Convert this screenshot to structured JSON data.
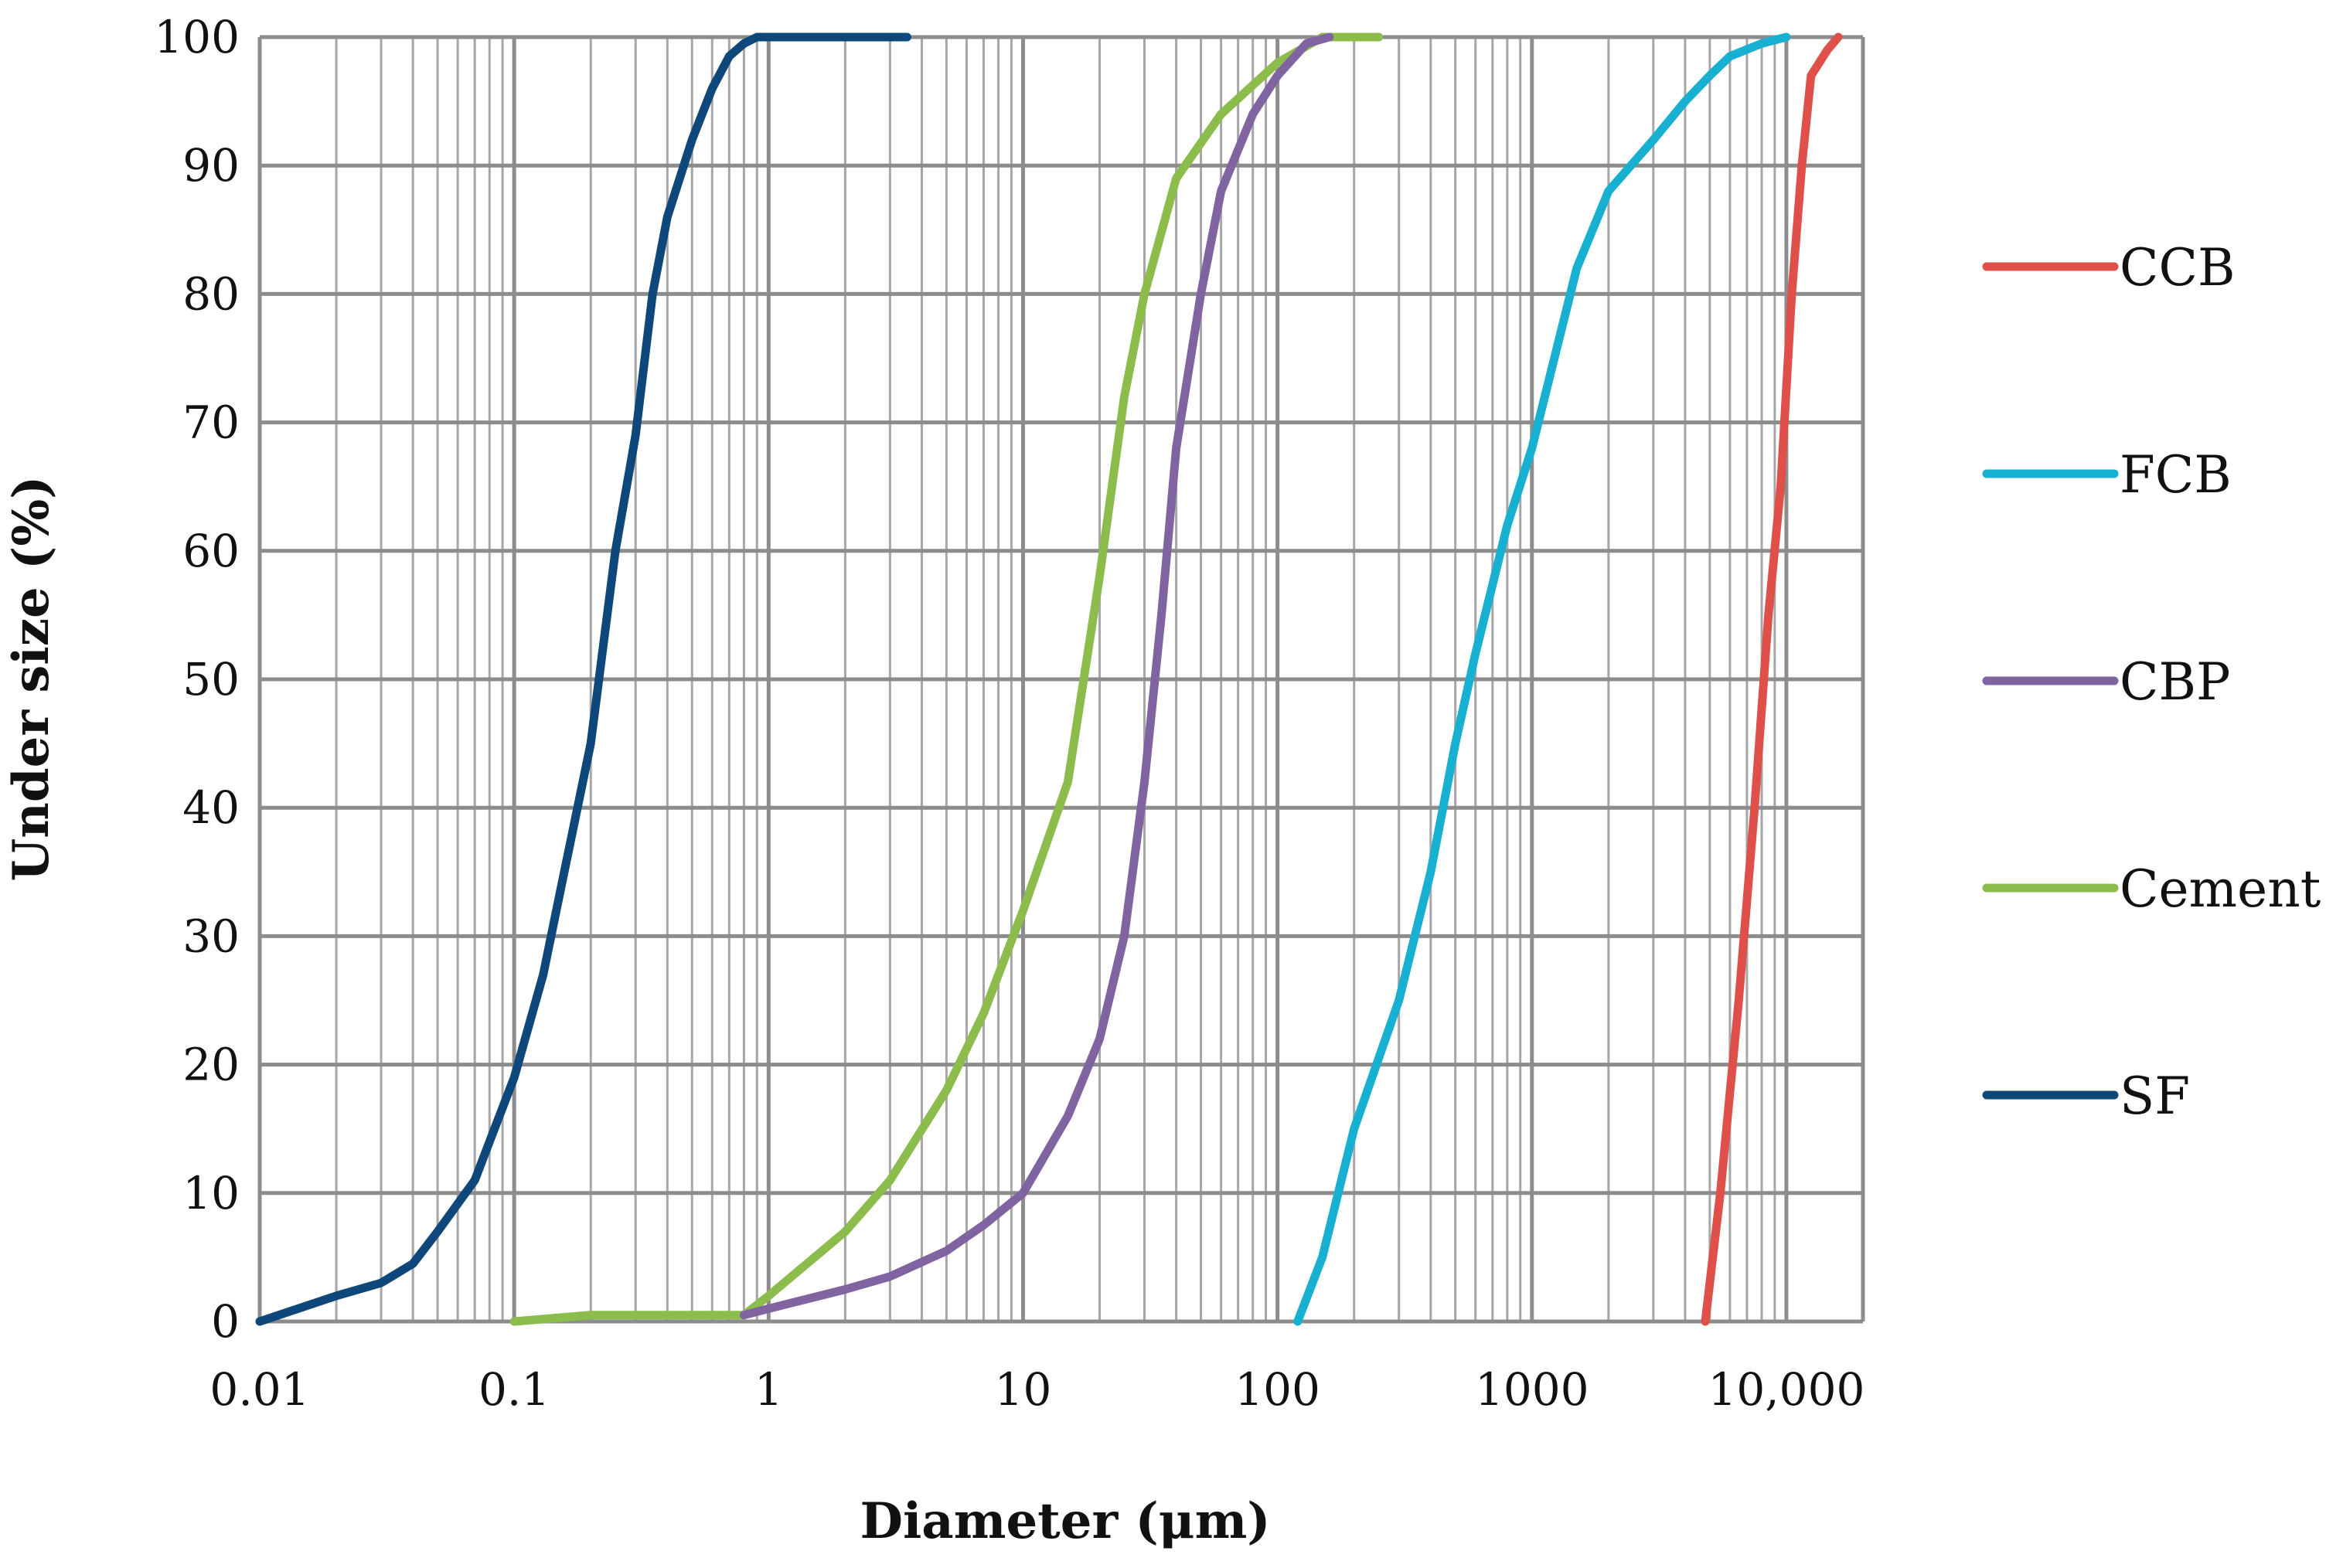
{
  "chart_data": {
    "type": "line",
    "title": "",
    "xlabel": "Diameter (μm)",
    "ylabel": "Under size (%)",
    "xscale": "log",
    "xlim": [
      0.01,
      20000
    ],
    "ylim": [
      0,
      100
    ],
    "x_tick_values": [
      0.01,
      0.1,
      1,
      10,
      100,
      1000,
      10000
    ],
    "x_tick_labels": [
      "0.01",
      "0.1",
      "1",
      "10",
      "100",
      "1000",
      "10,000"
    ],
    "y_tick_values": [
      0,
      10,
      20,
      30,
      40,
      50,
      60,
      70,
      80,
      90,
      100
    ],
    "y_tick_labels": [
      "0",
      "10",
      "20",
      "30",
      "40",
      "50",
      "60",
      "70",
      "80",
      "90",
      "100"
    ],
    "grid": true,
    "legend_position": "right",
    "series": [
      {
        "name": "CCB",
        "color": "#e0504a",
        "x": [
          4800,
          5500,
          6500,
          7500,
          8500,
          9500,
          10500,
          11500,
          12500,
          14500,
          16000
        ],
        "y": [
          0,
          10,
          25,
          40,
          55,
          65,
          80,
          90,
          97,
          99,
          100
        ]
      },
      {
        "name": "FCB",
        "color": "#17b0d0",
        "x": [
          120,
          150,
          200,
          300,
          400,
          500,
          600,
          800,
          1000,
          1500,
          2000,
          3000,
          4000,
          5000,
          6000,
          8000,
          10000
        ],
        "y": [
          0,
          5,
          15,
          25,
          35,
          45,
          52,
          62,
          68,
          82,
          88,
          92,
          95,
          97,
          98.5,
          99.5,
          100
        ]
      },
      {
        "name": "CBP",
        "color": "#8064a2",
        "x": [
          0.8,
          1,
          2,
          3,
          5,
          7,
          10,
          15,
          20,
          25,
          30,
          35,
          40,
          50,
          60,
          80,
          100,
          130,
          160
        ],
        "y": [
          0.5,
          1,
          2.5,
          3.5,
          5.5,
          7.5,
          10,
          16,
          22,
          30,
          42,
          55,
          68,
          80,
          88,
          94,
          97,
          99.5,
          100
        ]
      },
      {
        "name": "Cement",
        "color": "#8cbc4c",
        "x": [
          0.1,
          0.2,
          0.5,
          0.8,
          1,
          2,
          3,
          5,
          7,
          10,
          15,
          20,
          25,
          30,
          40,
          60,
          100,
          150,
          250
        ],
        "y": [
          0,
          0.5,
          0.5,
          0.5,
          2,
          7,
          11,
          18,
          24,
          32,
          42,
          58,
          72,
          80,
          89,
          94,
          98,
          100,
          100
        ]
      },
      {
        "name": "SF",
        "color": "#0e4779",
        "x": [
          0.01,
          0.02,
          0.03,
          0.04,
          0.05,
          0.07,
          0.08,
          0.1,
          0.13,
          0.15,
          0.2,
          0.25,
          0.3,
          0.35,
          0.4,
          0.5,
          0.6,
          0.7,
          0.8,
          0.9,
          1,
          2,
          3.5
        ],
        "y": [
          0,
          2,
          3,
          4.5,
          7,
          11,
          14,
          19,
          27,
          33,
          45,
          60,
          69,
          80,
          86,
          92,
          96,
          98.5,
          99.5,
          100,
          100,
          100,
          100
        ]
      }
    ]
  }
}
